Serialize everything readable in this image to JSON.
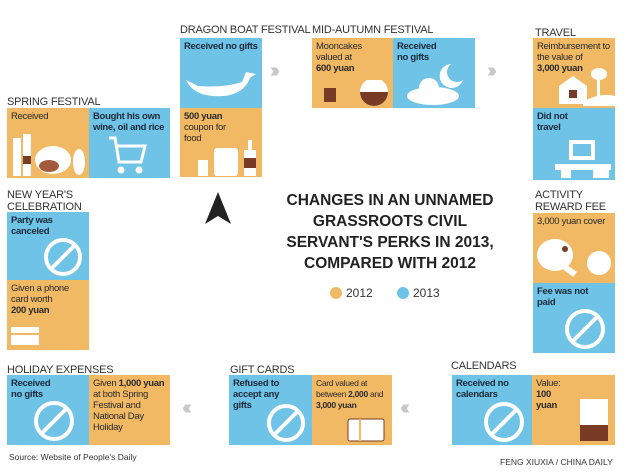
{
  "headline": [
    "CHANGES IN AN UNNAMED",
    "GRASSROOTS CIVIL",
    "SERVANT'S PERKS IN 2013,",
    "COMPARED WITH 2012"
  ],
  "legend": [
    {
      "label": "2012",
      "color": "#f2b965"
    },
    {
      "label": "2013",
      "color": "#6fc3e6"
    }
  ],
  "sections": {
    "dragon": {
      "title": "DRAGON BOAT FESTIVAL",
      "y2013": "Received no gifts",
      "y2012_bold": "500 yuan",
      "y2012": "coupon for food"
    },
    "midautumn": {
      "title": "MID-AUTUMN FESTIVAL",
      "y2012": "Mooncakes valued at",
      "y2012_bold": "600 yuan",
      "y2013": "Received no gifts"
    },
    "travel": {
      "title": "TRAVEL",
      "y2012": "Reimbursement to the value of",
      "y2012_bold": "3,000 yuan",
      "y2013": "Did not travel"
    },
    "activity": {
      "title": "ACTIVITY REWARD FEE",
      "y2012": "3,000 yuan cover",
      "y2013": "Fee was not paid"
    },
    "calendars": {
      "title": "CALENDARS",
      "y2013": "Received no calendars",
      "y2012": "Value:",
      "y2012_bold": "100 yuan"
    },
    "giftcards": {
      "title": "GIFT CARDS",
      "y2013": "Refused to accept any gifts",
      "y2012_a": "Card valued at between",
      "y2012_b": "2,000",
      "y2012_c": "and",
      "y2012_d": "3,000 yuan"
    },
    "holiday": {
      "title": "HOLIDAY EXPENSES",
      "y2013": "Received no gifts",
      "y2012_a": "Given",
      "y2012_b": "1,000 yuan",
      "y2012_c": "at both Spring Festival and National Day Holiday"
    },
    "newyear": {
      "title": "NEW YEAR'S CELEBRATION",
      "y2013": "Party was canceled",
      "y2012": "Given a phone card worth",
      "y2012_bold": "200 yuan"
    },
    "spring": {
      "title": "SPRING FESTIVAL",
      "y2012": "Received",
      "y2013": "Bought his own wine, oil and rice"
    }
  },
  "arrows": {
    "right": "›››",
    "left": "‹‹‹"
  },
  "source": "Source: Website of People's Daily",
  "credit": "FENG XIUXIA / CHINA DAILY"
}
